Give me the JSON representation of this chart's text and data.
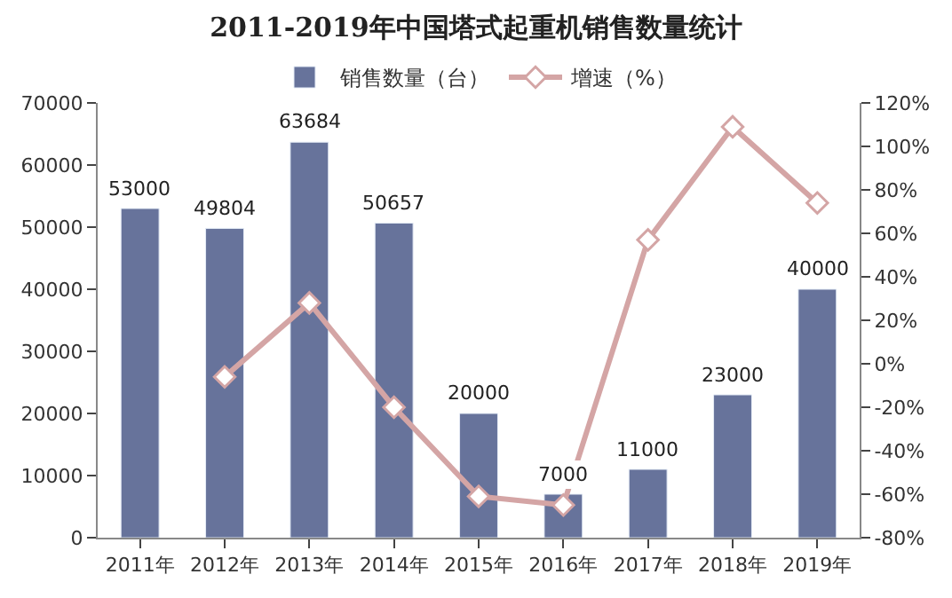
{
  "chart_data": {
    "type": "bar",
    "title": "2011-2019年中国塔式起重机销售数量统计",
    "categories": [
      "2011年",
      "2012年",
      "2013年",
      "2014年",
      "2015年",
      "2016年",
      "2017年",
      "2018年",
      "2019年"
    ],
    "series": [
      {
        "name": "销售数量（台）",
        "color": "#67739b",
        "values": [
          53000,
          49804,
          63684,
          50657,
          20000,
          7000,
          11000,
          23000,
          40000
        ],
        "data_labels": true
      },
      {
        "name": "增速（%）",
        "type": "line",
        "axis": "y2",
        "color": "#d4a5a5",
        "marker": "diamond",
        "values": [
          null,
          -6,
          28,
          -20,
          -61,
          -65,
          57,
          109,
          74
        ]
      }
    ],
    "ylim": [
      0,
      70000
    ],
    "yticks": [
      0,
      10000,
      20000,
      30000,
      40000,
      50000,
      60000,
      70000
    ],
    "y2lim": [
      -80,
      120
    ],
    "y2ticks": [
      {
        "value": -80,
        "label": "-80%"
      },
      {
        "value": -60,
        "label": "-60%"
      },
      {
        "value": -40,
        "label": "-40%"
      },
      {
        "value": -20,
        "label": "-20%"
      },
      {
        "value": 0,
        "label": "0%"
      },
      {
        "value": 20,
        "label": "20%"
      },
      {
        "value": 40,
        "label": "40%"
      },
      {
        "value": 60,
        "label": "60%"
      },
      {
        "value": 80,
        "label": "80%"
      },
      {
        "value": 100,
        "label": "100%"
      },
      {
        "value": 120,
        "label": "120%"
      }
    ],
    "legend": "top"
  }
}
